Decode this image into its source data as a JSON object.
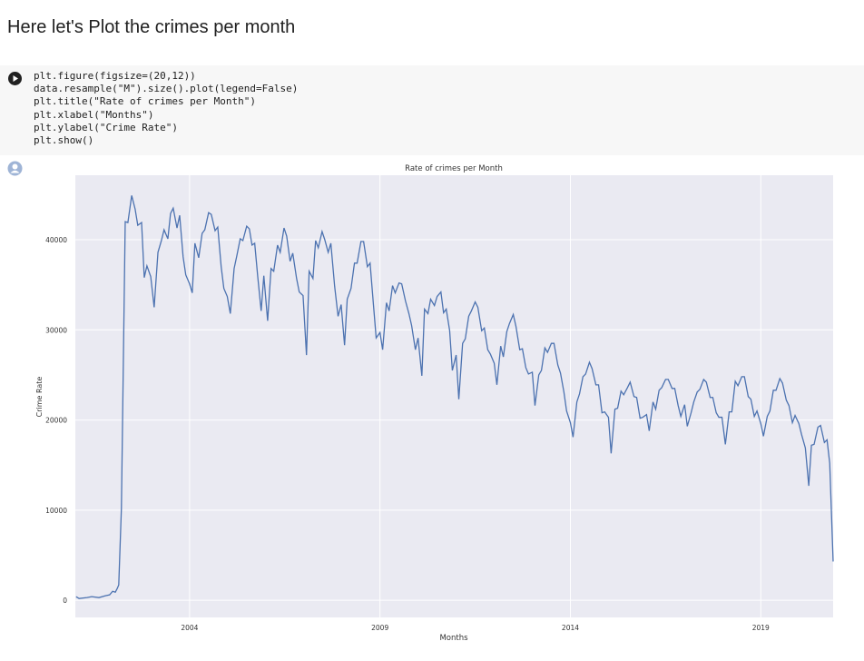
{
  "heading": "Here let's Plot the crimes per month",
  "code": {
    "lines": [
      "plt.figure(figsize=(20,12))",
      "data.resample(\"M\").size().plot(legend=False)",
      "plt.title(\"Rate of crimes per Month\")",
      "plt.xlabel(\"Months\")",
      "plt.ylabel(\"Crime Rate\")",
      "plt.show()"
    ]
  },
  "chart_data": {
    "type": "line",
    "title": "Rate of crimes per Month",
    "x_label": "Months",
    "y_label": "Crime Rate",
    "color": "#4c72b0",
    "grid": true,
    "xlim": [
      2001.0,
      2020.9
    ],
    "ylim": [
      -1900,
      47150
    ],
    "xticks": [
      2004,
      2009,
      2014,
      2019
    ],
    "yticks": [
      0,
      10000,
      20000,
      30000,
      40000
    ],
    "x": [
      2001.02,
      2001.1,
      2001.31,
      2001.43,
      2001.62,
      2001.79,
      2001.9,
      2001.98,
      2002.05,
      2002.1,
      2002.14,
      2002.21,
      2002.31,
      2002.38,
      2002.48,
      2002.57,
      2002.64,
      2002.74,
      2002.81,
      2002.88,
      2002.98,
      2003.07,
      2003.17,
      2003.26,
      2003.33,
      2003.43,
      2003.5,
      2003.57,
      2003.67,
      2003.74,
      2003.83,
      2003.9,
      2004.0,
      2004.07,
      2004.14,
      2004.24,
      2004.33,
      2004.4,
      2004.5,
      2004.57,
      2004.67,
      2004.74,
      2004.83,
      2004.9,
      2004.99,
      2005.07,
      2005.17,
      2005.24,
      2005.33,
      2005.4,
      2005.5,
      2005.57,
      2005.64,
      2005.71,
      2005.79,
      2005.88,
      2005.95,
      2006.05,
      2006.14,
      2006.21,
      2006.31,
      2006.38,
      2006.48,
      2006.55,
      2006.64,
      2006.71,
      2006.81,
      2006.88,
      2006.98,
      2007.07,
      2007.14,
      2007.24,
      2007.31,
      2007.38,
      2007.48,
      2007.55,
      2007.64,
      2007.71,
      2007.81,
      2007.9,
      2007.98,
      2008.07,
      2008.14,
      2008.24,
      2008.33,
      2008.4,
      2008.5,
      2008.57,
      2008.67,
      2008.74,
      2008.83,
      2008.9,
      2009.0,
      2009.07,
      2009.17,
      2009.24,
      2009.33,
      2009.4,
      2009.5,
      2009.57,
      2009.67,
      2009.76,
      2009.83,
      2009.93,
      2010.0,
      2010.1,
      2010.17,
      2010.26,
      2010.33,
      2010.43,
      2010.5,
      2010.6,
      2010.67,
      2010.74,
      2010.83,
      2010.9,
      2011.0,
      2011.07,
      2011.17,
      2011.24,
      2011.33,
      2011.4,
      2011.5,
      2011.57,
      2011.67,
      2011.74,
      2011.83,
      2011.9,
      2012.0,
      2012.07,
      2012.17,
      2012.24,
      2012.33,
      2012.4,
      2012.5,
      2012.57,
      2012.67,
      2012.74,
      2012.83,
      2012.9,
      2013.0,
      2013.07,
      2013.17,
      2013.24,
      2013.33,
      2013.4,
      2013.5,
      2013.57,
      2013.67,
      2013.74,
      2013.83,
      2013.9,
      2014.0,
      2014.07,
      2014.17,
      2014.24,
      2014.33,
      2014.4,
      2014.5,
      2014.57,
      2014.67,
      2014.74,
      2014.83,
      2014.9,
      2015.0,
      2015.07,
      2015.17,
      2015.24,
      2015.33,
      2015.4,
      2015.5,
      2015.57,
      2015.67,
      2015.74,
      2015.83,
      2015.9,
      2016.0,
      2016.07,
      2016.17,
      2016.24,
      2016.33,
      2016.4,
      2016.5,
      2016.57,
      2016.67,
      2016.74,
      2016.83,
      2016.9,
      2017.0,
      2017.07,
      2017.17,
      2017.24,
      2017.33,
      2017.4,
      2017.5,
      2017.57,
      2017.67,
      2017.74,
      2017.83,
      2017.9,
      2017.98,
      2018.07,
      2018.17,
      2018.24,
      2018.33,
      2018.4,
      2018.5,
      2018.57,
      2018.67,
      2018.74,
      2018.83,
      2018.9,
      2019.0,
      2019.07,
      2019.17,
      2019.24,
      2019.33,
      2019.4,
      2019.5,
      2019.57,
      2019.67,
      2019.74,
      2019.83,
      2019.9,
      2020.0,
      2020.07,
      2020.17,
      2020.26,
      2020.33,
      2020.4,
      2020.5,
      2020.57,
      2020.67,
      2020.74,
      2020.81,
      2020.9
    ],
    "values": [
      400,
      200,
      300,
      400,
      300,
      500,
      600,
      1000,
      900,
      1300,
      1700,
      10200,
      42000,
      41900,
      44900,
      43400,
      41600,
      41900,
      35800,
      37100,
      35900,
      32500,
      38600,
      39900,
      41100,
      40100,
      42900,
      43500,
      41300,
      42700,
      38100,
      36100,
      35100,
      34100,
      39600,
      38000,
      40700,
      41100,
      43000,
      42800,
      41000,
      41400,
      37000,
      34600,
      33700,
      31800,
      36800,
      38200,
      40100,
      39900,
      41500,
      41200,
      39400,
      39600,
      35900,
      32100,
      36000,
      31000,
      36800,
      36500,
      39400,
      38600,
      41300,
      40400,
      37600,
      38500,
      35700,
      34200,
      33800,
      27200,
      36500,
      35700,
      39900,
      39100,
      40900,
      40000,
      38600,
      39600,
      34800,
      31500,
      32800,
      28300,
      33400,
      34600,
      37400,
      37400,
      39800,
      39800,
      37000,
      37400,
      32700,
      29100,
      29700,
      27800,
      33000,
      32100,
      34900,
      34100,
      35200,
      35100,
      33200,
      31800,
      30500,
      27800,
      29100,
      24900,
      32300,
      31800,
      33400,
      32700,
      33700,
      34200,
      31900,
      32300,
      29900,
      25500,
      27200,
      22300,
      28500,
      29000,
      31500,
      32100,
      33100,
      32500,
      29900,
      30200,
      27800,
      27300,
      26300,
      23900,
      28200,
      27000,
      29800,
      30700,
      31700,
      30400,
      27800,
      27900,
      25800,
      25100,
      25300,
      21600,
      25000,
      25500,
      28000,
      27500,
      28500,
      28500,
      26100,
      25200,
      23100,
      21000,
      19700,
      18100,
      22000,
      22900,
      24800,
      25100,
      26400,
      25700,
      23900,
      23900,
      20800,
      20900,
      20300,
      16300,
      21200,
      21300,
      23200,
      22800,
      23600,
      24200,
      22600,
      22500,
      20200,
      20300,
      20600,
      18800,
      22000,
      21200,
      23300,
      23600,
      24500,
      24500,
      23500,
      23500,
      21600,
      20400,
      21700,
      19300,
      20800,
      22000,
      23100,
      23400,
      24500,
      24200,
      22500,
      22500,
      20800,
      20300,
      20300,
      17300,
      20900,
      20900,
      24300,
      23800,
      24800,
      24800,
      22600,
      22300,
      20400,
      21000,
      19600,
      18200,
      20400,
      21000,
      23300,
      23300,
      24600,
      24100,
      22200,
      21600,
      19700,
      20500,
      19600,
      18400,
      16900,
      12700,
      17200,
      17300,
      19200,
      19400,
      17500,
      17800,
      15200,
      4300
    ]
  }
}
